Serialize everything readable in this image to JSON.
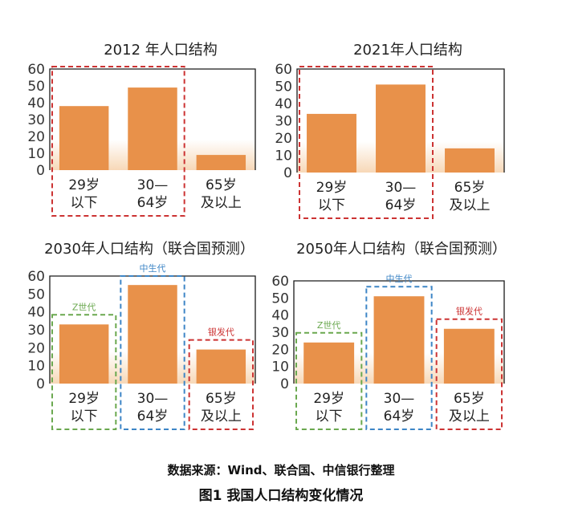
{
  "colors": {
    "bar": "#e8914a",
    "bar_fade": "#f7d8b7",
    "green_box": "#6aa84f",
    "blue_box": "#3d85c6",
    "red_box": "#cc3333"
  },
  "chart_data": [
    {
      "type": "bar",
      "title": "2012 年人口结构",
      "categories": [
        "29岁\n以下",
        "30—\n64岁",
        "65岁\n及以上"
      ],
      "values": [
        38,
        49,
        9
      ],
      "ylim": [
        0,
        60
      ],
      "yticks": [
        0,
        10,
        20,
        30,
        40,
        50,
        60
      ],
      "grid": false,
      "groups": [
        {
          "label": "",
          "color": "red",
          "categories": [
            0,
            1
          ]
        }
      ]
    },
    {
      "type": "bar",
      "title": "2021年人口结构",
      "categories": [
        "29岁\n以下",
        "30—\n64岁",
        "65岁\n及以上"
      ],
      "values": [
        34,
        51,
        14
      ],
      "ylim": [
        0,
        60
      ],
      "yticks": [
        0,
        10,
        20,
        30,
        40,
        50,
        60
      ],
      "grid": false,
      "groups": [
        {
          "label": "",
          "color": "red",
          "categories": [
            0,
            1
          ]
        }
      ]
    },
    {
      "type": "bar",
      "title": "2030年人口结构（联合国预测）",
      "categories": [
        "29岁\n以下",
        "30—\n64岁",
        "65岁\n及以上"
      ],
      "values": [
        33,
        55,
        19
      ],
      "ylim": [
        0,
        60
      ],
      "yticks": [
        0,
        10,
        20,
        30,
        40,
        50,
        60
      ],
      "grid": false,
      "groups": [
        {
          "label": "Z世代",
          "color": "green",
          "categories": [
            0
          ]
        },
        {
          "label": "中生代",
          "color": "blue",
          "categories": [
            1
          ]
        },
        {
          "label": "银发代",
          "color": "red",
          "categories": [
            2
          ]
        }
      ]
    },
    {
      "type": "bar",
      "title": "2050年人口结构（联合国预测）",
      "categories": [
        "29岁\n以下",
        "30—\n64岁",
        "65岁\n及以上"
      ],
      "values": [
        24,
        51,
        32
      ],
      "ylim": [
        0,
        60
      ],
      "yticks": [
        0,
        10,
        20,
        30,
        40,
        50,
        60
      ],
      "grid": false,
      "groups": [
        {
          "label": "Z世代",
          "color": "green",
          "categories": [
            0
          ]
        },
        {
          "label": "中生代",
          "color": "blue",
          "categories": [
            1
          ]
        },
        {
          "label": "银发代",
          "color": "red",
          "categories": [
            2
          ]
        }
      ]
    }
  ],
  "caption": {
    "source": "数据来源：Wind、联合国、中信银行整理",
    "figure_title": "图1   我国人口结构变化情况"
  }
}
